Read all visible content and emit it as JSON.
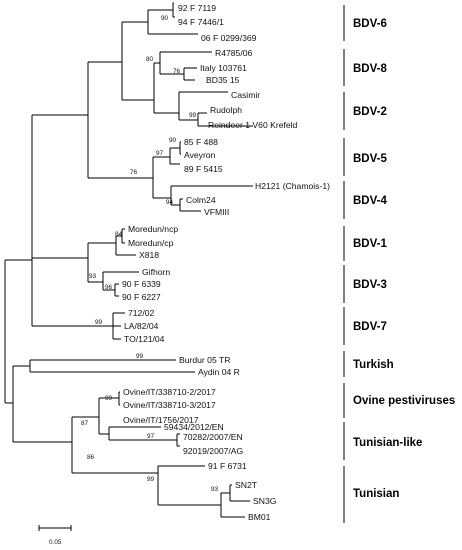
{
  "leaves": [
    "92 F 7119",
    "94 F 7446/1",
    "06 F 0299/369",
    "R4785/06",
    "Italy 103761",
    "BD35 15",
    "Casimir",
    "Rudolph",
    "Reindeer 1 V60 Krefeld",
    "85 F 488",
    "Aveyron",
    "89 F 5415",
    "H2121 (Chamois-1)",
    "Colm24",
    "VFMIII",
    "Moredun/ncp",
    "Moredun/cp",
    "X818",
    "Gifhorn",
    "90 F 6339",
    "90 F 6227",
    "712/02",
    "LA/82/04",
    "TO/121/04",
    "Burdur 05 TR",
    "Aydin 04 R",
    "Ovine/IT/338710-2/2017",
    "Ovine/IT/338710-3/2017",
    "Ovine/IT/1756/2017",
    "59434/2012/EN",
    "70282/2007/EN",
    "92019/2007/AG",
    "91 F 6731",
    "SN2T",
    "SN3G",
    "BM01"
  ],
  "bootstrap": [
    "90",
    "80",
    "76",
    "99",
    "90",
    "97",
    "76",
    "94",
    "84",
    "93",
    "96",
    "99",
    "99",
    "99",
    "87",
    "97",
    "86",
    "99",
    "93"
  ],
  "clades": [
    "BDV-6",
    "BDV-8",
    "BDV-2",
    "BDV-5",
    "BDV-4",
    "BDV-1",
    "BDV-3",
    "BDV-7",
    "Turkish",
    "Ovine pestiviruses",
    "Tunisian-like",
    "Tunisian"
  ],
  "scale": {
    "label": "0.05"
  }
}
